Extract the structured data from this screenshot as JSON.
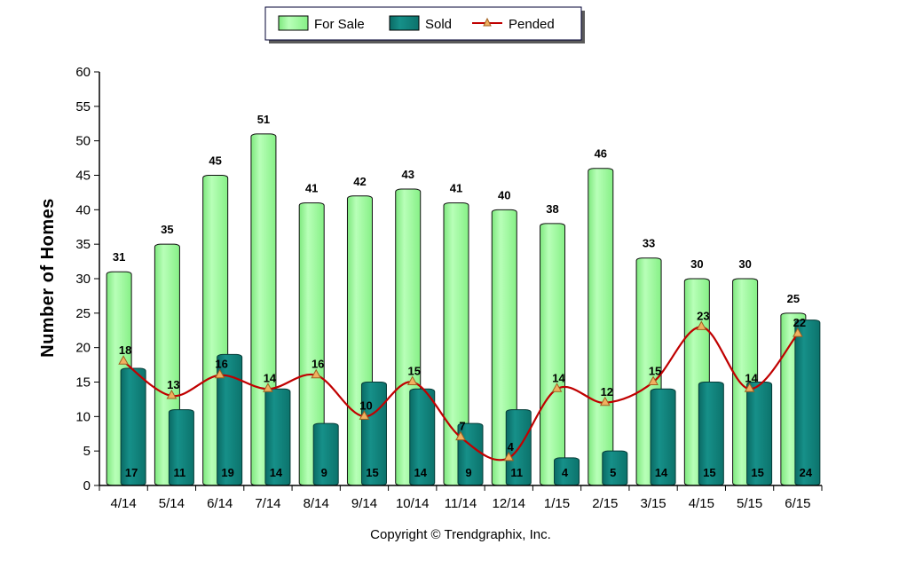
{
  "chart_data": {
    "type": "bar",
    "ylabel": "Number of Homes",
    "xlabel": "",
    "ylim": [
      0,
      60
    ],
    "yticks": [
      0,
      5,
      10,
      15,
      20,
      25,
      30,
      35,
      40,
      45,
      50,
      55,
      60
    ],
    "categories": [
      "4/14",
      "5/14",
      "6/14",
      "7/14",
      "8/14",
      "9/14",
      "10/14",
      "11/14",
      "12/14",
      "1/15",
      "2/15",
      "3/15",
      "4/15",
      "5/15",
      "6/15"
    ],
    "series": [
      {
        "name": "For Sale",
        "type": "bar",
        "color": "#98f898",
        "values": [
          31,
          35,
          45,
          51,
          41,
          42,
          43,
          41,
          40,
          38,
          46,
          33,
          30,
          30,
          25
        ]
      },
      {
        "name": "Sold",
        "type": "bar",
        "color": "#0f7f78",
        "values": [
          17,
          11,
          19,
          14,
          9,
          15,
          14,
          9,
          11,
          4,
          5,
          14,
          15,
          15,
          24
        ]
      },
      {
        "name": "Pended",
        "type": "line",
        "color": "#c00000",
        "marker_color": "#f0b060",
        "values": [
          18,
          13,
          16,
          14,
          16,
          10,
          15,
          7,
          4,
          14,
          12,
          15,
          23,
          14,
          22
        ]
      }
    ],
    "legend_position": "top-center",
    "grid": false
  },
  "footer": {
    "copyright": "Copyright © Trendgraphix, Inc."
  }
}
